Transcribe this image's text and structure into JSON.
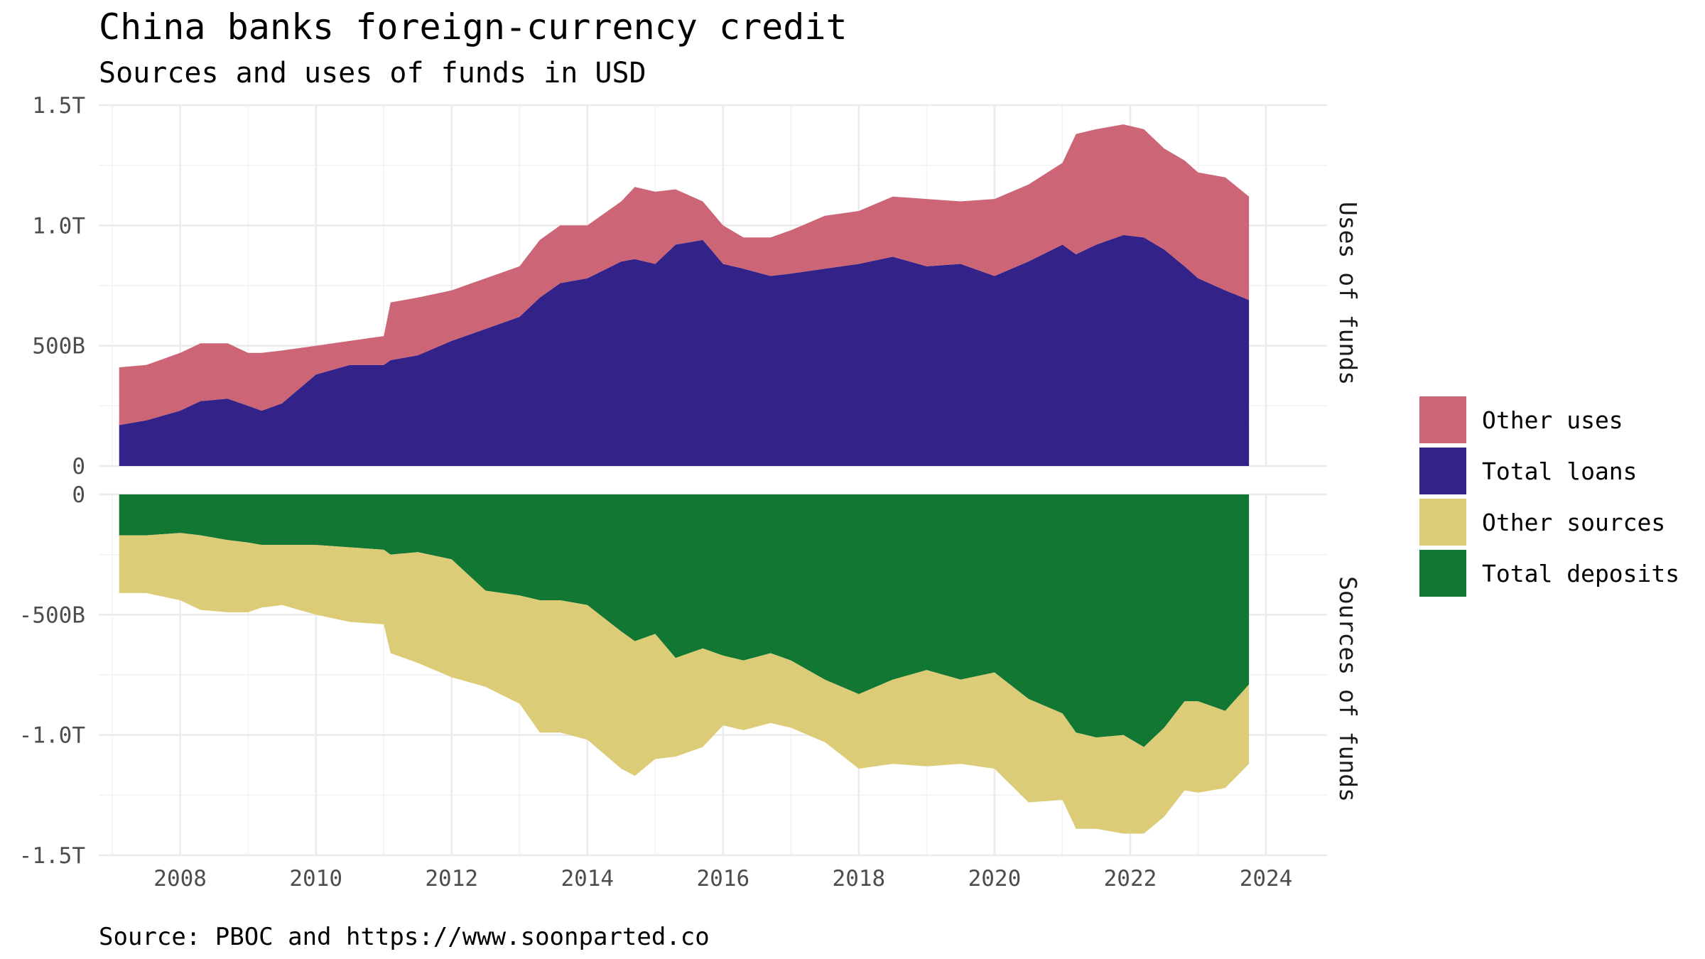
{
  "title": "China banks foreign-currency credit",
  "subtitle": "Sources and uses of funds in USD",
  "caption": "Source: PBOC and https://www.soonparted.co",
  "colors": {
    "other_uses": "#cc6677",
    "total_loans": "#332288",
    "other_sources": "#ddcc77",
    "total_deposits": "#117733"
  },
  "chart_data": {
    "type": "area",
    "x_ticks": [
      "2008",
      "2010",
      "2012",
      "2014",
      "2016",
      "2018",
      "2020",
      "2022",
      "2024"
    ],
    "xlim": [
      2006.8,
      2024.9
    ],
    "grid": true,
    "legend_position": "right",
    "legend": [
      {
        "key": "other_uses",
        "label": "Other uses"
      },
      {
        "key": "total_loans",
        "label": "Total loans"
      },
      {
        "key": "other_sources",
        "label": "Other sources"
      },
      {
        "key": "total_deposits",
        "label": "Total deposits"
      }
    ],
    "facets": [
      {
        "name": "uses",
        "label": "Uses of funds",
        "ylim": [
          0,
          1.5
        ],
        "y_ticks": [
          {
            "value": 1.5,
            "label": "1.5T"
          },
          {
            "value": 1.0,
            "label": "1.0T"
          },
          {
            "value": 0.5,
            "label": "500B"
          },
          {
            "value": 0,
            "label": "0"
          }
        ]
      },
      {
        "name": "sources",
        "label": "Sources of funds",
        "ylim": [
          -1.5,
          0
        ],
        "y_ticks": [
          {
            "value": 0,
            "label": "0"
          },
          {
            "value": -0.5,
            "label": "-500B"
          },
          {
            "value": -1.0,
            "label": "-1.0T"
          },
          {
            "value": -1.5,
            "label": "-1.5T"
          }
        ]
      }
    ],
    "unit": "USD trillions",
    "x": [
      2007.1,
      2007.5,
      2008.0,
      2008.3,
      2008.7,
      2009.0,
      2009.2,
      2009.5,
      2010.0,
      2010.5,
      2011.0,
      2011.1,
      2011.5,
      2012.0,
      2012.5,
      2013.0,
      2013.3,
      2013.6,
      2014.0,
      2014.5,
      2014.7,
      2015.0,
      2015.3,
      2015.7,
      2016.0,
      2016.3,
      2016.7,
      2017.0,
      2017.5,
      2018.0,
      2018.5,
      2019.0,
      2019.5,
      2020.0,
      2020.5,
      2021.0,
      2021.2,
      2021.5,
      2021.9,
      2022.2,
      2022.5,
      2022.8,
      2023.0,
      2023.4,
      2023.75
    ],
    "series": [
      {
        "name": "Total loans",
        "key": "total_loans",
        "facet": "uses",
        "values": [
          0.17,
          0.19,
          0.23,
          0.27,
          0.28,
          0.25,
          0.23,
          0.26,
          0.38,
          0.42,
          0.42,
          0.44,
          0.46,
          0.52,
          0.57,
          0.62,
          0.7,
          0.76,
          0.78,
          0.85,
          0.86,
          0.84,
          0.92,
          0.94,
          0.84,
          0.82,
          0.79,
          0.8,
          0.82,
          0.84,
          0.87,
          0.83,
          0.84,
          0.79,
          0.85,
          0.92,
          0.88,
          0.92,
          0.96,
          0.95,
          0.9,
          0.83,
          0.78,
          0.73,
          0.69
        ]
      },
      {
        "name": "Other uses",
        "key": "other_uses",
        "facet": "uses",
        "values": [
          0.24,
          0.23,
          0.24,
          0.24,
          0.23,
          0.22,
          0.24,
          0.22,
          0.12,
          0.1,
          0.12,
          0.24,
          0.24,
          0.21,
          0.21,
          0.21,
          0.24,
          0.24,
          0.22,
          0.25,
          0.3,
          0.3,
          0.23,
          0.16,
          0.16,
          0.13,
          0.16,
          0.18,
          0.22,
          0.22,
          0.25,
          0.28,
          0.26,
          0.32,
          0.32,
          0.34,
          0.5,
          0.48,
          0.46,
          0.45,
          0.42,
          0.44,
          0.44,
          0.47,
          0.43
        ]
      },
      {
        "name": "Total deposits",
        "key": "total_deposits",
        "facet": "sources",
        "values": [
          -0.17,
          -0.17,
          -0.16,
          -0.17,
          -0.19,
          -0.2,
          -0.21,
          -0.21,
          -0.21,
          -0.22,
          -0.23,
          -0.25,
          -0.24,
          -0.27,
          -0.4,
          -0.42,
          -0.44,
          -0.44,
          -0.46,
          -0.57,
          -0.61,
          -0.58,
          -0.68,
          -0.64,
          -0.67,
          -0.69,
          -0.66,
          -0.69,
          -0.77,
          -0.83,
          -0.77,
          -0.73,
          -0.77,
          -0.74,
          -0.85,
          -0.91,
          -0.99,
          -1.01,
          -1.0,
          -1.05,
          -0.97,
          -0.86,
          -0.86,
          -0.9,
          -0.79
        ]
      },
      {
        "name": "Other sources",
        "key": "other_sources",
        "facet": "sources",
        "values": [
          -0.24,
          -0.24,
          -0.28,
          -0.31,
          -0.3,
          -0.29,
          -0.26,
          -0.25,
          -0.29,
          -0.31,
          -0.31,
          -0.41,
          -0.46,
          -0.49,
          -0.4,
          -0.45,
          -0.55,
          -0.55,
          -0.56,
          -0.57,
          -0.56,
          -0.52,
          -0.41,
          -0.41,
          -0.29,
          -0.29,
          -0.29,
          -0.28,
          -0.26,
          -0.31,
          -0.35,
          -0.4,
          -0.35,
          -0.4,
          -0.43,
          -0.36,
          -0.4,
          -0.38,
          -0.41,
          -0.36,
          -0.37,
          -0.37,
          -0.38,
          -0.32,
          -0.33
        ]
      }
    ]
  }
}
